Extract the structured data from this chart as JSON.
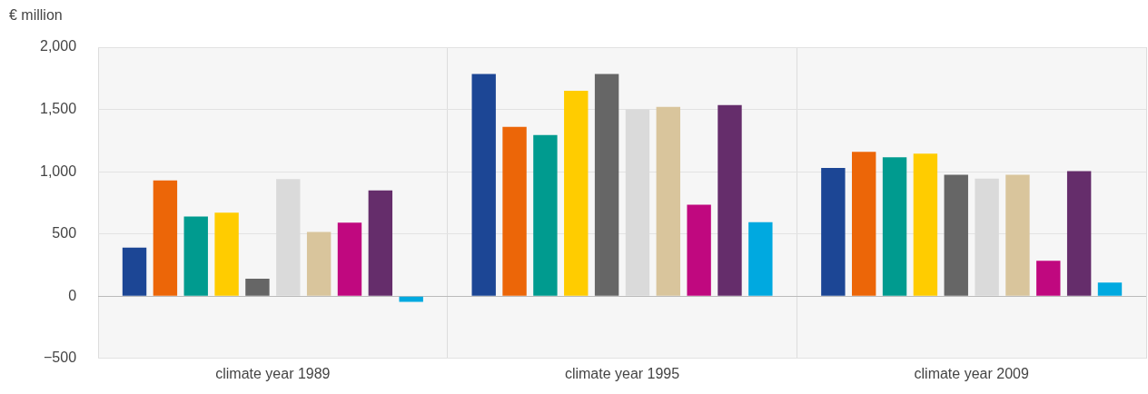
{
  "chart_data": {
    "type": "bar",
    "ylabel": "€ million",
    "categories": [
      "climate year 1989",
      "climate year 1995",
      "climate year 2009"
    ],
    "series": [
      {
        "color": "#1c4695",
        "values": [
          390,
          1785,
          1030
        ]
      },
      {
        "color": "#ec6608",
        "values": [
          930,
          1360,
          1160
        ]
      },
      {
        "color": "#009b8f",
        "values": [
          640,
          1295,
          1115
        ]
      },
      {
        "color": "#ffcc00",
        "values": [
          670,
          1650,
          1145
        ]
      },
      {
        "color": "#666666",
        "values": [
          140,
          1785,
          975
        ]
      },
      {
        "color": "#dadada",
        "values": [
          940,
          1500,
          945
        ]
      },
      {
        "color": "#d9c59c",
        "values": [
          515,
          1520,
          975
        ]
      },
      {
        "color": "#c0087f",
        "values": [
          590,
          735,
          285
        ]
      },
      {
        "color": "#652d6b",
        "values": [
          850,
          1535,
          1005
        ]
      },
      {
        "color": "#00a9e0",
        "values": [
          -45,
          595,
          110
        ]
      }
    ],
    "ylim": [
      -500,
      2000
    ],
    "yticks": [
      {
        "value": -500,
        "label": "−500"
      },
      0,
      500,
      {
        "value": 1000,
        "label": "1,000"
      },
      {
        "value": 1500,
        "label": "1,500"
      },
      {
        "value": 2000,
        "label": "2,000"
      }
    ],
    "grid": true,
    "legend": false
  }
}
